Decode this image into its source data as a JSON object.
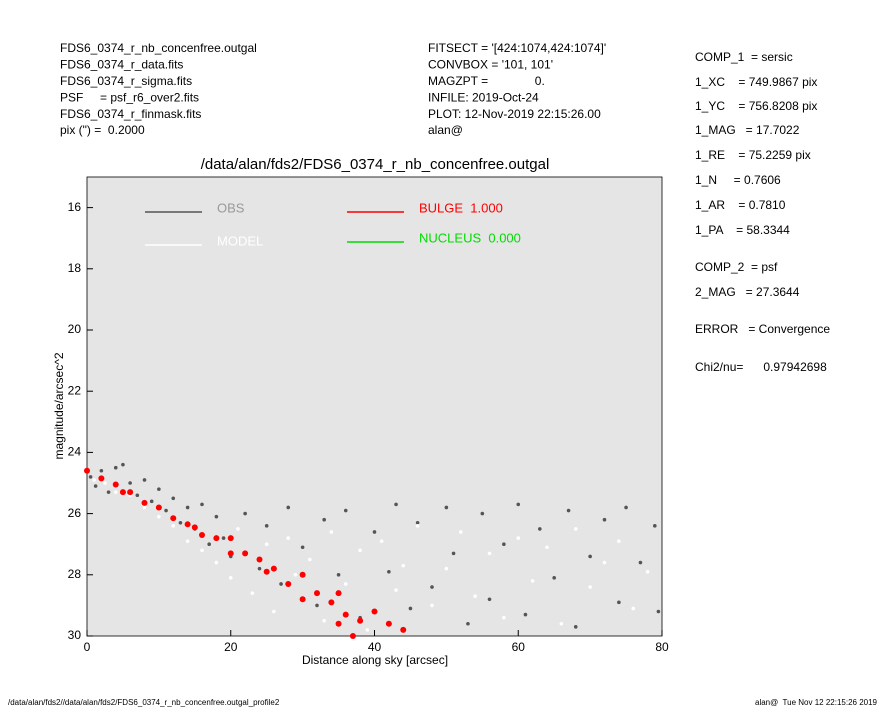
{
  "header": {
    "left": [
      "FDS6_0374_r_nb_concenfree.outgal",
      "FDS6_0374_r_data.fits",
      "FDS6_0374_r_sigma.fits",
      "PSF     = psf_r6_over2.fits",
      "FDS6_0374_r_finmask.fits",
      "pix (\") =  0.2000"
    ],
    "middle": [
      "FITSECT = '[424:1074,424:1074]'",
      "CONVBOX = '101, 101'",
      "MAGZPT =              0.",
      "INFILE: 2019-Oct-24",
      "PLOT: 12-Nov-2019 22:15:26.00",
      "alan@"
    ]
  },
  "parameters": [
    "COMP_1  = sersic",
    "1_XC    = 749.9867 pix",
    "1_YC    = 756.8208 pix",
    "1_MAG   = 17.7022",
    "1_RE    = 75.2259 pix",
    "1_N     = 0.7606",
    "1_AR    = 0.7810",
    "1_PA    = 58.3344",
    "COMP_2  = psf",
    "2_MAG   = 27.3644",
    "ERROR   = Convergence",
    "Chi2/nu=      0.97942698"
  ],
  "footer": {
    "left": "/data/alan/fds2//data/alan/fds2/FDS6_0374_r_nb_concenfree.outgal_profile2",
    "right": "alan@  Tue Nov 12 22:15:26 2019"
  },
  "chart_data": {
    "type": "scatter",
    "title": "/data/alan/fds2/FDS6_0374_r_nb_concenfree.outgal",
    "x_label": "Distance along sky [arcsec]",
    "y_label": "magnitude/arcsec^2",
    "xlim": [
      0,
      80
    ],
    "xticks": [
      0,
      20,
      40,
      60,
      80
    ],
    "ylim": [
      15,
      30
    ],
    "yticks": [
      16,
      18,
      20,
      22,
      24,
      26,
      28,
      30
    ],
    "invert_y": true,
    "background": "#e5e5e5",
    "series": [
      {
        "name": "OBS",
        "color": "#555555",
        "x": [
          0.5,
          1.2,
          2,
          3,
          4,
          5,
          6,
          7,
          8,
          9,
          10,
          11,
          12,
          13,
          14,
          15,
          16,
          17,
          18,
          19,
          20,
          22,
          24,
          25,
          27,
          28,
          30,
          32,
          33,
          35,
          36,
          38,
          40,
          42,
          43,
          45,
          46,
          48,
          50,
          51,
          53,
          55,
          56,
          58,
          60,
          61,
          63,
          65,
          67,
          68,
          70,
          72,
          74,
          75,
          77,
          79,
          79.5
        ],
        "values": [
          24.8,
          25.1,
          24.6,
          25.3,
          24.5,
          24.4,
          25.0,
          25.4,
          24.9,
          25.6,
          25.2,
          25.9,
          25.5,
          26.3,
          25.8,
          26.5,
          25.7,
          27.0,
          26.1,
          26.8,
          27.4,
          26.0,
          27.8,
          26.4,
          28.3,
          25.8,
          27.1,
          29.0,
          26.2,
          28.0,
          25.9,
          29.4,
          26.6,
          27.9,
          25.7,
          29.1,
          26.3,
          28.4,
          25.8,
          27.3,
          29.6,
          26.0,
          28.8,
          27.0,
          25.7,
          29.3,
          26.5,
          28.1,
          25.9,
          29.7,
          27.4,
          26.2,
          28.9,
          25.8,
          27.6,
          26.4,
          29.2
        ]
      },
      {
        "name": "MODEL",
        "color": "#ffffff",
        "x": [
          1,
          2.5,
          4,
          6,
          8,
          10,
          12,
          14,
          16,
          18,
          20,
          21,
          23,
          25,
          26,
          28,
          29,
          31,
          33,
          34,
          36,
          38,
          39,
          41,
          43,
          44,
          46,
          48,
          50,
          52,
          54,
          56,
          58,
          60,
          62,
          64,
          66,
          68,
          70,
          72,
          74,
          76,
          78
        ],
        "values": [
          24.9,
          25.0,
          25.3,
          25.4,
          25.8,
          26.1,
          26.4,
          26.9,
          27.2,
          27.6,
          28.1,
          26.5,
          28.6,
          27.0,
          29.2,
          26.8,
          28.0,
          27.5,
          29.5,
          26.6,
          28.3,
          27.2,
          29.8,
          26.9,
          28.5,
          27.7,
          26.4,
          29.0,
          27.8,
          26.6,
          28.7,
          27.3,
          29.4,
          26.8,
          28.2,
          27.1,
          29.6,
          26.5,
          28.4,
          27.6,
          26.9,
          29.1,
          27.9
        ]
      },
      {
        "name": "BULGE  1.000",
        "color": "#ff0000",
        "x": [
          0,
          2,
          4,
          5,
          6,
          8,
          10,
          12,
          14,
          15,
          16,
          18,
          20,
          20,
          22,
          24,
          25,
          26,
          28,
          30,
          30,
          32,
          34,
          35,
          35,
          36,
          37,
          38,
          40,
          42,
          44
        ],
        "values": [
          24.6,
          24.85,
          25.05,
          25.3,
          25.3,
          25.65,
          25.8,
          26.15,
          26.35,
          26.45,
          26.7,
          26.8,
          26.8,
          27.3,
          27.3,
          27.5,
          27.9,
          27.8,
          28.3,
          28.0,
          28.8,
          28.6,
          28.9,
          28.6,
          29.6,
          29.3,
          30.0,
          29.5,
          29.2,
          29.6,
          29.8
        ]
      },
      {
        "name": "NUCLEUS  0.000",
        "color": "#00dd00",
        "x": [],
        "values": []
      }
    ]
  }
}
